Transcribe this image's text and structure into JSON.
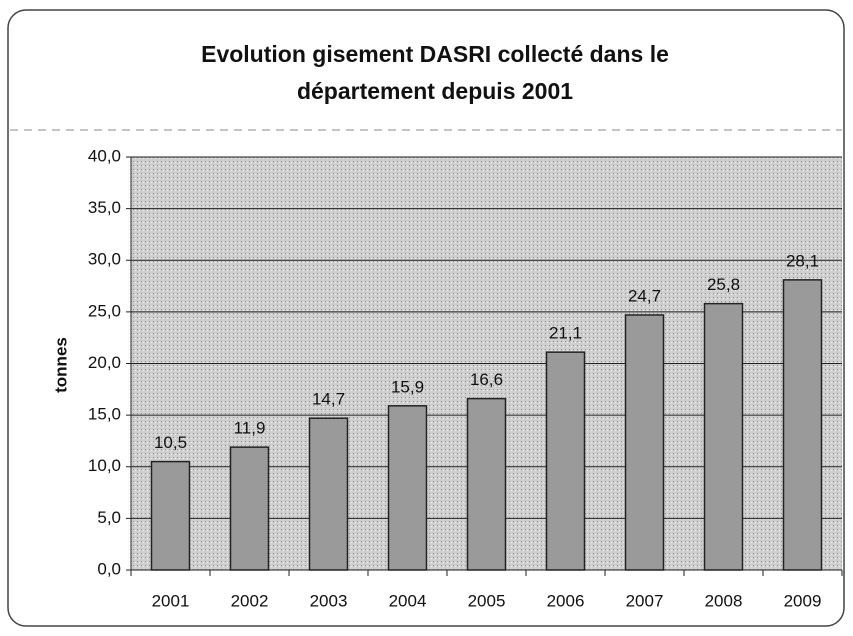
{
  "chart_data": {
    "type": "bar",
    "title": "Evolution gisement DASRI collecté dans le",
    "subtitle": "département depuis 2001",
    "ylabel": "tonnes",
    "categories": [
      "2001",
      "2002",
      "2003",
      "2004",
      "2005",
      "2006",
      "2007",
      "2008",
      "2009"
    ],
    "values": [
      10.5,
      11.9,
      14.7,
      15.9,
      16.6,
      21.1,
      24.7,
      25.8,
      28.1
    ],
    "value_labels": [
      "10,5",
      "11,9",
      "14,7",
      "15,9",
      "16,6",
      "21,1",
      "24,7",
      "25,8",
      "28,1"
    ],
    "color": "#9a9a9a",
    "ylim": [
      0,
      40
    ],
    "yticks": [
      {
        "value": 0,
        "label": "0,0"
      },
      {
        "value": 5,
        "label": "5,0"
      },
      {
        "value": 10,
        "label": "10,0"
      },
      {
        "value": 15,
        "label": "15,0"
      },
      {
        "value": 20,
        "label": "20,0"
      },
      {
        "value": 25,
        "label": "25,0"
      },
      {
        "value": 30,
        "label": "30,0"
      },
      {
        "value": 35,
        "label": "35,0"
      },
      {
        "value": 40,
        "label": "40,0"
      }
    ],
    "grid": true
  }
}
